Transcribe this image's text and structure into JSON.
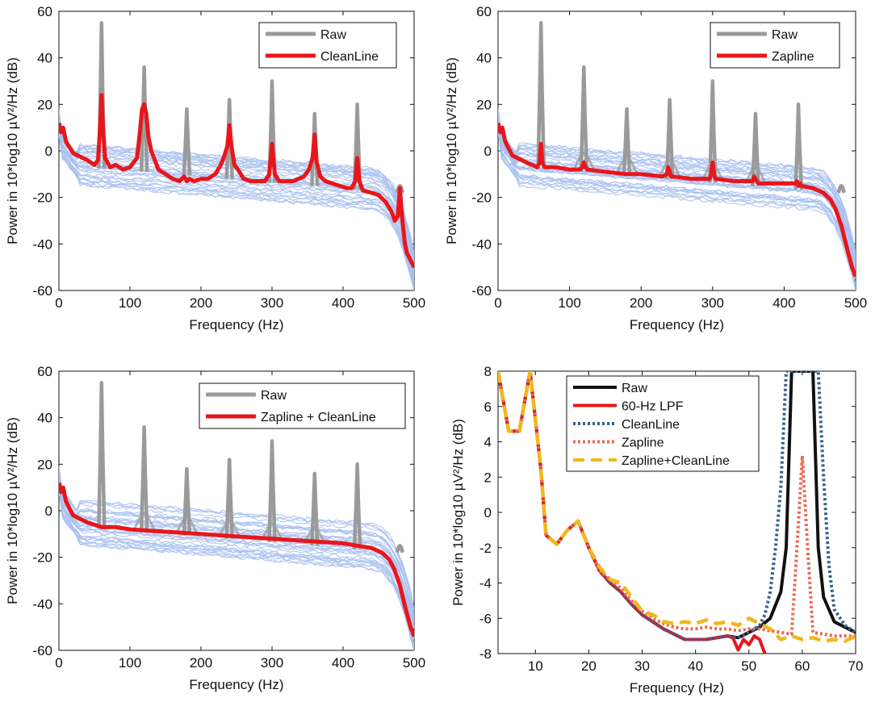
{
  "colors": {
    "raw_gray": "#9a9a9a",
    "red": "#e8161b",
    "blue_trace": "#a9c1ef",
    "black": "#111111",
    "navy_dotted": "#3a5f8c",
    "orange_dotted": "#ea6a52",
    "yellow_dashed": "#f0b81c"
  },
  "chart_data": [
    {
      "id": "a",
      "type": "line",
      "xlabel": "Frequency (Hz)",
      "ylabel": "Power in 10*log10 µV²/Hz  (dB)",
      "xlim": [
        0,
        500
      ],
      "ylim": [
        -60,
        60
      ],
      "xticks": [
        "0",
        "100",
        "200",
        "300",
        "400",
        "500"
      ],
      "yticks": [
        "-60",
        "-40",
        "-20",
        "0",
        "20",
        "40",
        "60"
      ],
      "legend": [
        "Raw",
        "CleanLine"
      ],
      "peaks_hz": [
        60,
        120,
        180,
        240,
        300,
        360,
        420,
        480
      ],
      "raw_peak_db": [
        55,
        36,
        18,
        22,
        30,
        16,
        20,
        -15
      ],
      "series": [
        {
          "name": "Raw",
          "x": [
            0,
            3,
            6,
            10,
            20,
            40,
            55,
            65,
            80,
            115,
            125,
            150,
            170,
            190,
            210,
            230,
            250,
            270,
            290,
            310,
            330,
            350,
            370,
            390,
            410,
            425,
            440,
            455,
            465,
            472,
            485,
            490,
            500
          ],
          "y": [
            12,
            8,
            5,
            3,
            0,
            -4,
            -6,
            -6,
            -8,
            -5,
            -6,
            -10,
            -11,
            -12,
            -12,
            -13,
            -13,
            -13,
            -14,
            -14,
            -14,
            -15,
            -15,
            -16,
            -16,
            -17,
            -18,
            -20,
            -24,
            -28,
            -35,
            -45,
            -52
          ]
        },
        {
          "name": "CleanLine",
          "x": [
            0,
            3,
            6,
            8,
            10,
            20,
            40,
            50,
            55,
            58,
            60,
            62,
            65,
            72,
            80,
            90,
            100,
            105,
            110,
            114,
            117,
            120,
            123,
            126,
            130,
            135,
            140,
            150,
            160,
            170,
            176,
            180,
            184,
            190,
            200,
            210,
            220,
            228,
            233,
            237,
            240,
            243,
            247,
            252,
            260,
            270,
            280,
            290,
            296,
            300,
            304,
            310,
            320,
            330,
            345,
            352,
            357,
            360,
            363,
            368,
            375,
            385,
            395,
            405,
            412,
            417,
            420,
            423,
            428,
            440,
            450,
            460,
            468,
            473,
            477,
            480,
            483,
            487,
            490,
            495,
            500
          ],
          "y": [
            12,
            8,
            10,
            7,
            4,
            -1,
            -4,
            -6,
            -4,
            10,
            24,
            10,
            -3,
            -7,
            -6,
            -8,
            -7,
            -5,
            -3,
            8,
            18,
            20,
            16,
            6,
            0,
            -4,
            -8,
            -10,
            -12,
            -13,
            -11,
            -13,
            -12,
            -13,
            -12,
            -12,
            -10,
            -6,
            -2,
            2,
            11,
            2,
            -6,
            -8,
            -12,
            -13,
            -13,
            -13,
            -10,
            3,
            -10,
            -13,
            -13,
            -13,
            -11,
            -8,
            -3,
            7,
            -5,
            -11,
            -13,
            -14,
            -15,
            -16,
            -16,
            -13,
            -3,
            -13,
            -17,
            -18,
            -19,
            -22,
            -26,
            -30,
            -28,
            -16,
            -28,
            -40,
            -44,
            -47,
            -50
          ]
        }
      ]
    },
    {
      "id": "b",
      "type": "line",
      "xlabel": "Frequency (Hz)",
      "ylabel": "Power in 10*log10 µV²/Hz  (dB)",
      "xlim": [
        0,
        500
      ],
      "ylim": [
        -60,
        60
      ],
      "xticks": [
        "0",
        "100",
        "200",
        "300",
        "400",
        "500"
      ],
      "yticks": [
        "-60",
        "-40",
        "-20",
        "0",
        "20",
        "40",
        "60"
      ],
      "legend": [
        "Raw",
        "Zapline"
      ],
      "series": [
        {
          "name": "Zapline",
          "x": [
            0,
            3,
            6,
            8,
            10,
            20,
            40,
            55,
            58,
            60,
            62,
            65,
            80,
            100,
            115,
            118,
            120,
            122,
            125,
            150,
            180,
            200,
            230,
            236,
            238,
            240,
            242,
            245,
            270,
            296,
            298,
            300,
            302,
            304,
            330,
            356,
            358,
            360,
            362,
            364,
            390,
            416,
            418,
            420,
            422,
            424,
            440,
            455,
            465,
            472,
            480,
            488,
            495,
            500
          ],
          "y": [
            12,
            8,
            10,
            7,
            4,
            -2,
            -5,
            -7,
            -5,
            3,
            -5,
            -7,
            -7,
            -8,
            -8,
            -7,
            -5,
            -7,
            -8,
            -9,
            -10,
            -10,
            -11,
            -10,
            -7,
            -9,
            -11,
            -11,
            -12,
            -12,
            -10,
            -5,
            -10,
            -12,
            -13,
            -13,
            -11,
            -12,
            -13,
            -14,
            -14,
            -14,
            -13,
            -15,
            -14,
            -15,
            -16,
            -18,
            -21,
            -25,
            -32,
            -42,
            -50,
            -54
          ]
        }
      ]
    },
    {
      "id": "c",
      "type": "line",
      "xlabel": "Frequency (Hz)",
      "ylabel": "Power in 10*log10 µV²/Hz  (dB)",
      "xlim": [
        0,
        500
      ],
      "ylim": [
        -60,
        60
      ],
      "xticks": [
        "0",
        "100",
        "200",
        "300",
        "400",
        "500"
      ],
      "yticks": [
        "-60",
        "-40",
        "-20",
        "0",
        "20",
        "40",
        "60"
      ],
      "legend": [
        "Raw",
        "Zapline + CleanLine"
      ],
      "series": [
        {
          "name": "Zapline + CleanLine",
          "x": [
            0,
            3,
            6,
            8,
            10,
            20,
            40,
            60,
            80,
            100,
            150,
            200,
            250,
            300,
            350,
            400,
            420,
            440,
            455,
            465,
            472,
            480,
            488,
            495,
            500
          ],
          "y": [
            12,
            8,
            10,
            7,
            4,
            -2,
            -5,
            -7,
            -7,
            -8,
            -9,
            -10,
            -11,
            -12,
            -13,
            -14,
            -15,
            -16,
            -18,
            -21,
            -25,
            -32,
            -42,
            -50,
            -54
          ]
        }
      ]
    },
    {
      "id": "d",
      "type": "line",
      "xlabel": "Frequency (Hz)",
      "ylabel": "Power in 10*log10 µV²/Hz  (dB)",
      "xlim": [
        3,
        70
      ],
      "ylim": [
        -8,
        8
      ],
      "xticks": [
        "10",
        "20",
        "30",
        "40",
        "50",
        "60",
        "70"
      ],
      "yticks": [
        "-8",
        "-6",
        "-4",
        "-2",
        "0",
        "2",
        "4",
        "6",
        "8"
      ],
      "legend": [
        "Raw",
        "60-Hz LPF",
        "CleanLine",
        "Zapline",
        "Zapline+CleanLine"
      ],
      "series": [
        {
          "name": "Raw",
          "x": [
            3,
            5,
            7,
            9,
            11,
            12,
            14,
            16,
            18,
            20,
            22,
            24,
            26,
            28,
            30,
            32,
            34,
            36,
            38,
            40,
            42,
            44,
            46,
            48,
            50,
            52,
            54,
            56,
            57,
            58,
            62,
            63,
            64,
            66,
            68,
            70
          ],
          "y": [
            8,
            4.6,
            4.6,
            8,
            2.5,
            -1.3,
            -1.8,
            -1,
            -0.5,
            -2,
            -3.3,
            -4,
            -4.5,
            -5.2,
            -5.8,
            -6.2,
            -6.6,
            -6.9,
            -7.2,
            -7.2,
            -7.2,
            -7.1,
            -7.0,
            -7.1,
            -6.8,
            -6.5,
            -6,
            -4.5,
            -2,
            8,
            8,
            -2,
            -4.8,
            -6.2,
            -6.5,
            -6.8
          ]
        },
        {
          "name": "60-Hz LPF",
          "x": [
            3,
            5,
            7,
            9,
            11,
            12,
            14,
            16,
            18,
            20,
            22,
            24,
            26,
            28,
            30,
            32,
            34,
            36,
            38,
            40,
            42,
            44,
            46,
            47,
            48,
            49,
            50,
            51,
            52,
            53
          ],
          "y": [
            8,
            4.6,
            4.6,
            8,
            2.5,
            -1.3,
            -1.8,
            -1,
            -0.5,
            -2,
            -3.3,
            -4,
            -4.5,
            -5.2,
            -5.8,
            -6.2,
            -6.6,
            -6.9,
            -7.2,
            -7.2,
            -7.2,
            -7.1,
            -7.0,
            -7.1,
            -7.8,
            -7.2,
            -7.5,
            -7.0,
            -7.2,
            -8
          ]
        },
        {
          "name": "CleanLine",
          "x": [
            3,
            5,
            7,
            9,
            11,
            12,
            14,
            16,
            18,
            20,
            22,
            24,
            26,
            28,
            30,
            32,
            34,
            36,
            38,
            40,
            42,
            44,
            46,
            48,
            50,
            52,
            53,
            54,
            55,
            56,
            57,
            63,
            64,
            65,
            66,
            68,
            70
          ],
          "y": [
            8,
            4.6,
            4.6,
            8,
            2.5,
            -1.3,
            -1.8,
            -1,
            -0.5,
            -2,
            -3.3,
            -4,
            -4.5,
            -5.2,
            -5.8,
            -6.2,
            -6.6,
            -6.9,
            -7.2,
            -7.2,
            -7.2,
            -7.1,
            -7.0,
            -7.1,
            -6.8,
            -6.4,
            -5.8,
            -4.5,
            -2,
            1.5,
            8,
            8,
            2,
            -3,
            -5.5,
            -6.4,
            -6.8
          ]
        },
        {
          "name": "Zapline",
          "x": [
            3,
            5,
            7,
            9,
            11,
            12,
            14,
            16,
            18,
            20,
            22,
            24,
            26,
            28,
            30,
            32,
            34,
            36,
            38,
            40,
            42,
            44,
            46,
            48,
            50,
            52,
            54,
            56,
            58,
            59,
            60,
            61,
            62,
            64,
            66,
            68,
            70
          ],
          "y": [
            8,
            4.6,
            4.6,
            8,
            2.5,
            -1.3,
            -1.8,
            -1,
            -0.5,
            -2,
            -3.3,
            -3.8,
            -4.3,
            -5,
            -5.6,
            -6,
            -6.3,
            -6.5,
            -6.6,
            -6.6,
            -6.5,
            -6.6,
            -6.6,
            -6.7,
            -6.6,
            -6.6,
            -6.7,
            -6.8,
            -6.9,
            -2,
            3.2,
            -2,
            -6.8,
            -6.9,
            -7,
            -7,
            -7
          ]
        },
        {
          "name": "Zapline+CleanLine",
          "x": [
            3,
            5,
            7,
            9,
            11,
            12,
            14,
            16,
            18,
            20,
            22,
            24,
            26,
            28,
            30,
            32,
            34,
            36,
            38,
            40,
            42,
            44,
            46,
            48,
            50,
            52,
            54,
            56,
            58,
            60,
            62,
            64,
            66,
            68,
            70
          ],
          "y": [
            8,
            4.6,
            4.6,
            8,
            2.5,
            -1.3,
            -1.8,
            -1,
            -0.5,
            -2,
            -3.1,
            -3.8,
            -4.0,
            -4.8,
            -5.6,
            -5.8,
            -6.2,
            -6.3,
            -6.2,
            -6.3,
            -6.1,
            -6.3,
            -6.2,
            -6.4,
            -6.0,
            -6.3,
            -6.6,
            -7.2,
            -7.0,
            -7.2,
            -7.1,
            -7.3,
            -7.2,
            -7.3,
            -7.0
          ]
        }
      ]
    }
  ]
}
